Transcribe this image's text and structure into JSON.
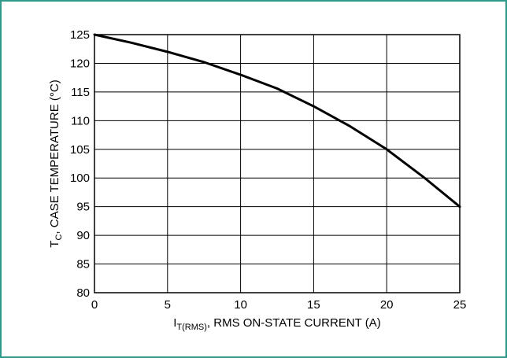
{
  "chart_data": {
    "type": "line",
    "title": "",
    "xlabel": {
      "main": "I",
      "sub": "T(RMS)",
      "rest": ", RMS ON-STATE CURRENT (A)"
    },
    "ylabel": {
      "main": "T",
      "sub": "C",
      "rest": ", CASE TEMPERATURE (°C)"
    },
    "xlim": [
      0,
      25
    ],
    "ylim": [
      80,
      125
    ],
    "xticks": [
      0,
      5,
      10,
      15,
      20,
      25
    ],
    "yticks": [
      80,
      85,
      90,
      95,
      100,
      105,
      110,
      115,
      120,
      125
    ],
    "grid": {
      "x": true,
      "y": true
    },
    "series": [
      {
        "x": [
          0,
          2.5,
          5,
          7.5,
          10,
          12.5,
          15,
          17.5,
          20,
          22.5,
          25
        ],
        "y": [
          125,
          123.6,
          122,
          120.2,
          118,
          115.6,
          112.5,
          109,
          105,
          100.2,
          95
        ]
      }
    ],
    "colors": {
      "line": "#000000",
      "grid": "#000000",
      "frame": "#2f9a8a"
    }
  }
}
